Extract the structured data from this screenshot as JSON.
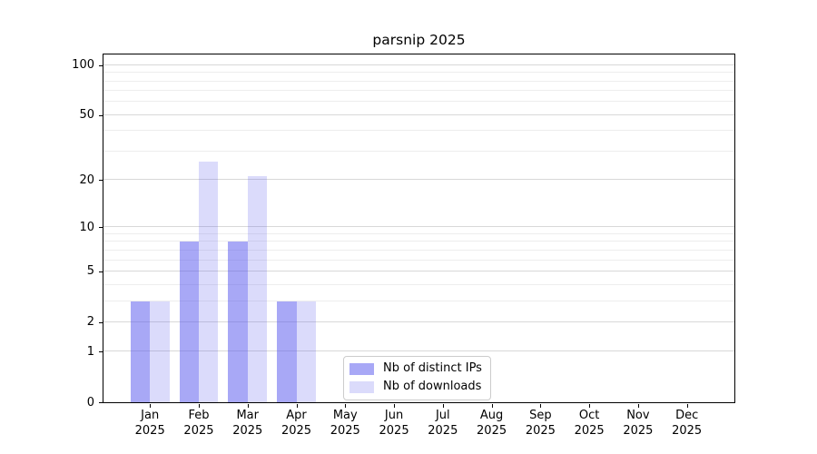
{
  "chart_data": {
    "type": "bar",
    "title": "parsnip 2025",
    "categories": [
      {
        "month": "Jan",
        "year": "2025"
      },
      {
        "month": "Feb",
        "year": "2025"
      },
      {
        "month": "Mar",
        "year": "2025"
      },
      {
        "month": "Apr",
        "year": "2025"
      },
      {
        "month": "May",
        "year": "2025"
      },
      {
        "month": "Jun",
        "year": "2025"
      },
      {
        "month": "Jul",
        "year": "2025"
      },
      {
        "month": "Aug",
        "year": "2025"
      },
      {
        "month": "Sep",
        "year": "2025"
      },
      {
        "month": "Oct",
        "year": "2025"
      },
      {
        "month": "Nov",
        "year": "2025"
      },
      {
        "month": "Dec",
        "year": "2025"
      }
    ],
    "series": [
      {
        "name": "Nb of distinct IPs",
        "color": "rgba(88,88,238,0.52)",
        "values": [
          3,
          8,
          8,
          3,
          0,
          0,
          0,
          0,
          0,
          0,
          0,
          0
        ]
      },
      {
        "name": "Nb of downloads",
        "color": "rgba(88,88,238,0.215)",
        "values": [
          3,
          26,
          21,
          3,
          0,
          0,
          0,
          0,
          0,
          0,
          0,
          0
        ]
      }
    ],
    "y_axis": {
      "scale": "log1p",
      "major_ticks": [
        0,
        1,
        2,
        5,
        10,
        20,
        50,
        100
      ],
      "minor_gridlines": [
        3,
        4,
        6,
        7,
        8,
        9,
        30,
        40,
        60,
        70,
        80,
        90
      ],
      "max": 116
    },
    "legend_position": "lower center",
    "grid": true,
    "colors": {
      "major_grid": "#d8d8d8",
      "minor_grid": "#ededed",
      "axis": "#000000",
      "text": "#000000"
    }
  }
}
